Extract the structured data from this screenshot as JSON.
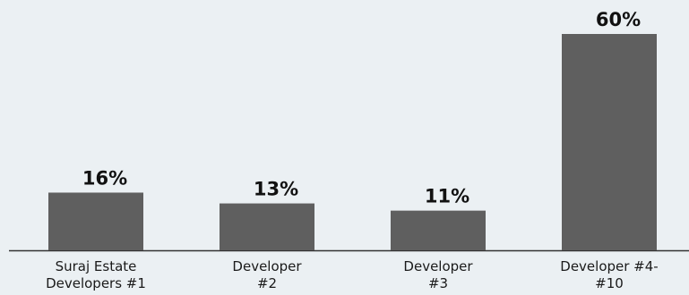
{
  "chart_data": {
    "type": "bar",
    "categories": [
      [
        "Suraj Estate",
        "Developers #1"
      ],
      [
        "Developer",
        "#2"
      ],
      [
        "Developer",
        "#3"
      ],
      [
        "Developer #4-",
        "#10"
      ]
    ],
    "values": [
      16,
      13,
      11,
      60
    ],
    "value_labels": [
      "16%",
      "13%",
      "11%",
      "60%"
    ],
    "ylim": [
      0,
      60
    ],
    "grid": false,
    "legend": "none",
    "colors": {
      "bar": "#5f5f5f",
      "background": "#ebf0f3",
      "axis": "#333333"
    }
  }
}
